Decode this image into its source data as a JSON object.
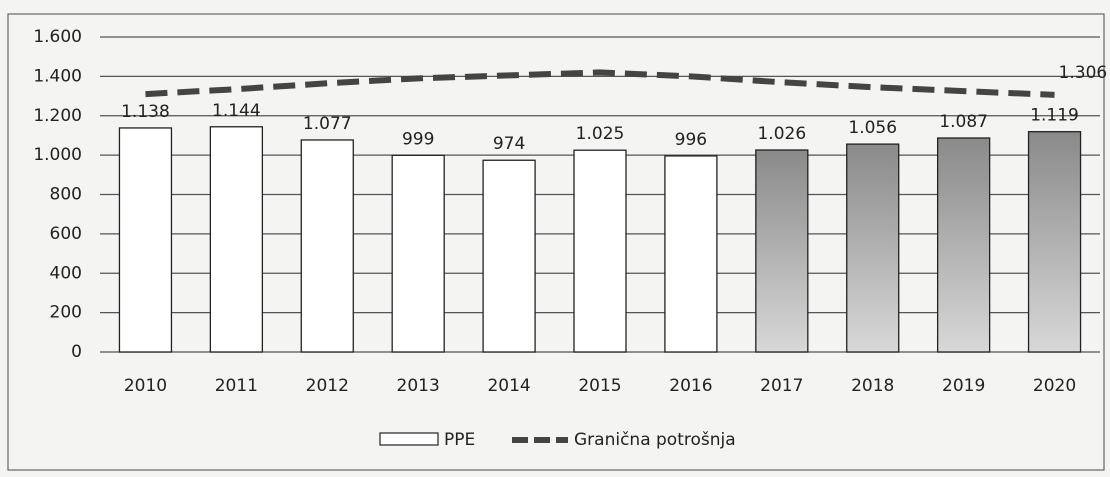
{
  "chart_data": {
    "type": "bar",
    "categories": [
      "2010",
      "2011",
      "2012",
      "2013",
      "2014",
      "2015",
      "2016",
      "2017",
      "2018",
      "2019",
      "2020"
    ],
    "series": [
      {
        "name": "PPE",
        "type": "bar",
        "colors": [
          "#ffffff",
          "#ffffff",
          "#ffffff",
          "#ffffff",
          "#ffffff",
          "#ffffff",
          "#ffffff",
          "#a8a8a8",
          "#a8a8a8",
          "#a8a8a8",
          "#a8a8a8"
        ],
        "values": [
          1138,
          1144,
          1077,
          999,
          974,
          1025,
          996,
          1026,
          1056,
          1087,
          1119
        ],
        "value_labels": [
          "1.138",
          "1.144",
          "1.077",
          "999",
          "974",
          "1.025",
          "996",
          "1.026",
          "1.056",
          "1.087",
          "1.119"
        ]
      },
      {
        "name": "Granična potrošnja",
        "type": "line",
        "color": "#444444",
        "dashed": true,
        "values": [
          1310,
          1335,
          1365,
          1390,
          1405,
          1420,
          1400,
          1370,
          1345,
          1325,
          1306
        ],
        "value_labels": [
          null,
          null,
          null,
          null,
          null,
          null,
          null,
          null,
          null,
          null,
          "1.306"
        ]
      }
    ],
    "ylim": [
      0,
      1600
    ],
    "yticks": [
      0,
      200,
      400,
      600,
      800,
      {
        "value": 1000,
        "label": "1.000"
      },
      {
        "value": 1200,
        "label": "1.200"
      },
      {
        "value": 1400,
        "label": "1.400"
      },
      {
        "value": 1600,
        "label": "1.600"
      }
    ],
    "grid": true,
    "legend": "bottom"
  }
}
